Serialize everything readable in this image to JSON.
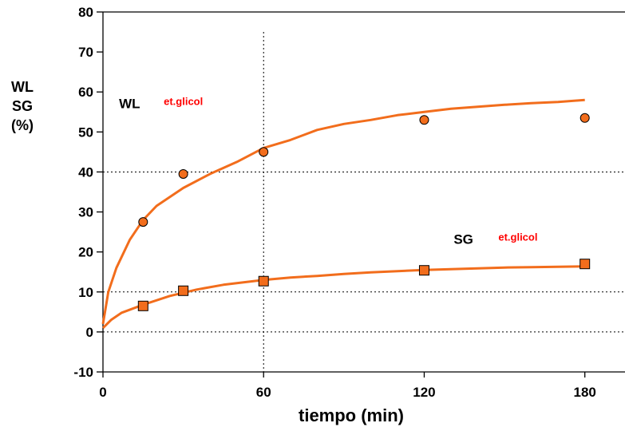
{
  "chart_data": {
    "type": "scatter",
    "xlabel": "tiempo (min)",
    "ylabel_lines": [
      "WL",
      "SG",
      "(%)"
    ],
    "xlim": [
      0,
      195
    ],
    "ylim": [
      -10,
      80
    ],
    "x_ticks": [
      0,
      60,
      120,
      180
    ],
    "y_ticks": [
      -10,
      0,
      10,
      20,
      30,
      40,
      50,
      60,
      70,
      80
    ],
    "reference_lines": {
      "horizontal": [
        0,
        10,
        40
      ],
      "vertical": [
        60
      ],
      "style": "dotted"
    },
    "colors": {
      "series": "#f26d1c",
      "curve": "#f26d1c",
      "marker_edge": "#000000"
    },
    "series": [
      {
        "name": "WL",
        "marker": "circle",
        "points": [
          {
            "x": 15,
            "y": 27.5
          },
          {
            "x": 30,
            "y": 39.5
          },
          {
            "x": 60,
            "y": 45.0
          },
          {
            "x": 120,
            "y": 53.0
          },
          {
            "x": 180,
            "y": 53.5
          }
        ],
        "fit_curve": [
          [
            0,
            2
          ],
          [
            2,
            10
          ],
          [
            5,
            16
          ],
          [
            10,
            23
          ],
          [
            15,
            28
          ],
          [
            20,
            31.5
          ],
          [
            30,
            36
          ],
          [
            40,
            39.5
          ],
          [
            50,
            42.5
          ],
          [
            60,
            46
          ],
          [
            70,
            48
          ],
          [
            80,
            50.5
          ],
          [
            90,
            52
          ],
          [
            100,
            53
          ],
          [
            110,
            54.2
          ],
          [
            120,
            55
          ],
          [
            130,
            55.8
          ],
          [
            140,
            56.3
          ],
          [
            150,
            56.8
          ],
          [
            160,
            57.2
          ],
          [
            170,
            57.5
          ],
          [
            180,
            58
          ]
        ]
      },
      {
        "name": "SG",
        "marker": "square",
        "points": [
          {
            "x": 15,
            "y": 6.5
          },
          {
            "x": 30,
            "y": 10.3
          },
          {
            "x": 60,
            "y": 12.7
          },
          {
            "x": 120,
            "y": 15.4
          },
          {
            "x": 180,
            "y": 17.0
          }
        ],
        "fit_curve": [
          [
            0,
            1
          ],
          [
            3,
            3
          ],
          [
            7,
            4.8
          ],
          [
            15,
            6.8
          ],
          [
            25,
            9
          ],
          [
            35,
            10.6
          ],
          [
            45,
            11.8
          ],
          [
            60,
            13
          ],
          [
            70,
            13.6
          ],
          [
            80,
            14
          ],
          [
            90,
            14.5
          ],
          [
            100,
            14.9
          ],
          [
            110,
            15.2
          ],
          [
            120,
            15.5
          ],
          [
            130,
            15.7
          ],
          [
            140,
            15.9
          ],
          [
            150,
            16.1
          ],
          [
            160,
            16.2
          ],
          [
            170,
            16.3
          ],
          [
            180,
            16.4
          ]
        ]
      }
    ],
    "annotations": [
      {
        "id": "wl",
        "main": "WL",
        "sub": "et.glicol",
        "x": 6,
        "y": 56
      },
      {
        "id": "sg",
        "main": "SG",
        "sub": "et.glicol",
        "x": 131,
        "y": 22
      }
    ]
  }
}
